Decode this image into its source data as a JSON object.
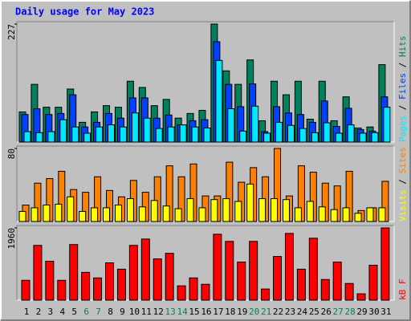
{
  "chart_data": [
    {
      "type": "bar",
      "title": "Daily usage for May 2023",
      "categories": [
        "1",
        "2",
        "3",
        "4",
        "5",
        "6",
        "7",
        "8",
        "9",
        "10",
        "11",
        "12",
        "13",
        "14",
        "15",
        "16",
        "17",
        "18",
        "19",
        "20",
        "21",
        "22",
        "23",
        "24",
        "25",
        "26",
        "27",
        "28",
        "29",
        "30",
        "31"
      ],
      "category_colors": [
        "#000000",
        "#000000",
        "#000000",
        "#000000",
        "#000000",
        "#00805c",
        "#00805c",
        "#000000",
        "#000000",
        "#000000",
        "#000000",
        "#000000",
        "#00805c",
        "#00805c",
        "#000000",
        "#000000",
        "#000000",
        "#000000",
        "#000000",
        "#00805c",
        "#00805c",
        "#000000",
        "#000000",
        "#000000",
        "#000000",
        "#000000",
        "#00805c",
        "#00805c",
        "#000000",
        "#000000",
        "#000000"
      ],
      "ylim": [
        0,
        227
      ],
      "yticks": [
        227
      ],
      "series": [
        {
          "name": "Hits",
          "color": "#00805c",
          "values": [
            58,
            111,
            67,
            67,
            102,
            38,
            58,
            70,
            67,
            117,
            105,
            70,
            82,
            46,
            55,
            61,
            227,
            137,
            111,
            158,
            41,
            117,
            91,
            117,
            44,
            117,
            41,
            87,
            27,
            29,
            149
          ]
        },
        {
          "name": "Files",
          "color": "#0040ff",
          "values": [
            53,
            64,
            53,
            55,
            91,
            29,
            38,
            55,
            46,
            85,
            85,
            46,
            52,
            33,
            41,
            43,
            193,
            111,
            68,
            112,
            20,
            68,
            56,
            53,
            38,
            79,
            30,
            65,
            24,
            21,
            87
          ]
        },
        {
          "name": "Pages",
          "color": "#00e8ff",
          "values": [
            20,
            18,
            20,
            43,
            29,
            17,
            29,
            33,
            29,
            56,
            46,
            26,
            29,
            33,
            29,
            27,
            157,
            64,
            21,
            69,
            17,
            38,
            32,
            26,
            18,
            37,
            17,
            33,
            17,
            18,
            67
          ]
        }
      ]
    },
    {
      "type": "bar",
      "ylim": [
        0,
        80
      ],
      "yticks": [
        80
      ],
      "series": [
        {
          "name": "Sites",
          "color": "#ff8000",
          "values": [
            18,
            42,
            47,
            55,
            35,
            32,
            49,
            34,
            27,
            45,
            32,
            49,
            61,
            49,
            63,
            28,
            28,
            65,
            43,
            59,
            49,
            80,
            28,
            61,
            54,
            42,
            39,
            55,
            12,
            15,
            44
          ]
        },
        {
          "name": "Visits",
          "color": "#ffff00",
          "values": [
            11,
            15,
            18,
            19,
            27,
            11,
            15,
            15,
            18,
            25,
            16,
            23,
            17,
            14,
            25,
            15,
            24,
            25,
            22,
            41,
            25,
            25,
            24,
            15,
            22,
            16,
            13,
            15,
            9,
            15,
            15
          ]
        }
      ]
    },
    {
      "type": "bar",
      "ylim": [
        0,
        1960
      ],
      "yticks": [
        1960
      ],
      "series": [
        {
          "name": "kB F",
          "color": "#ff0000",
          "values": [
            538,
            1486,
            1055,
            538,
            1508,
            754,
            603,
            1012,
            840,
            1486,
            1658,
            1120,
            1271,
            388,
            603,
            430,
            1788,
            1594,
            1034,
            1594,
            302,
            1185,
            1810,
            840,
            1680,
            560,
            1034,
            452,
            172,
            948,
            1960
          ]
        }
      ]
    }
  ]
}
